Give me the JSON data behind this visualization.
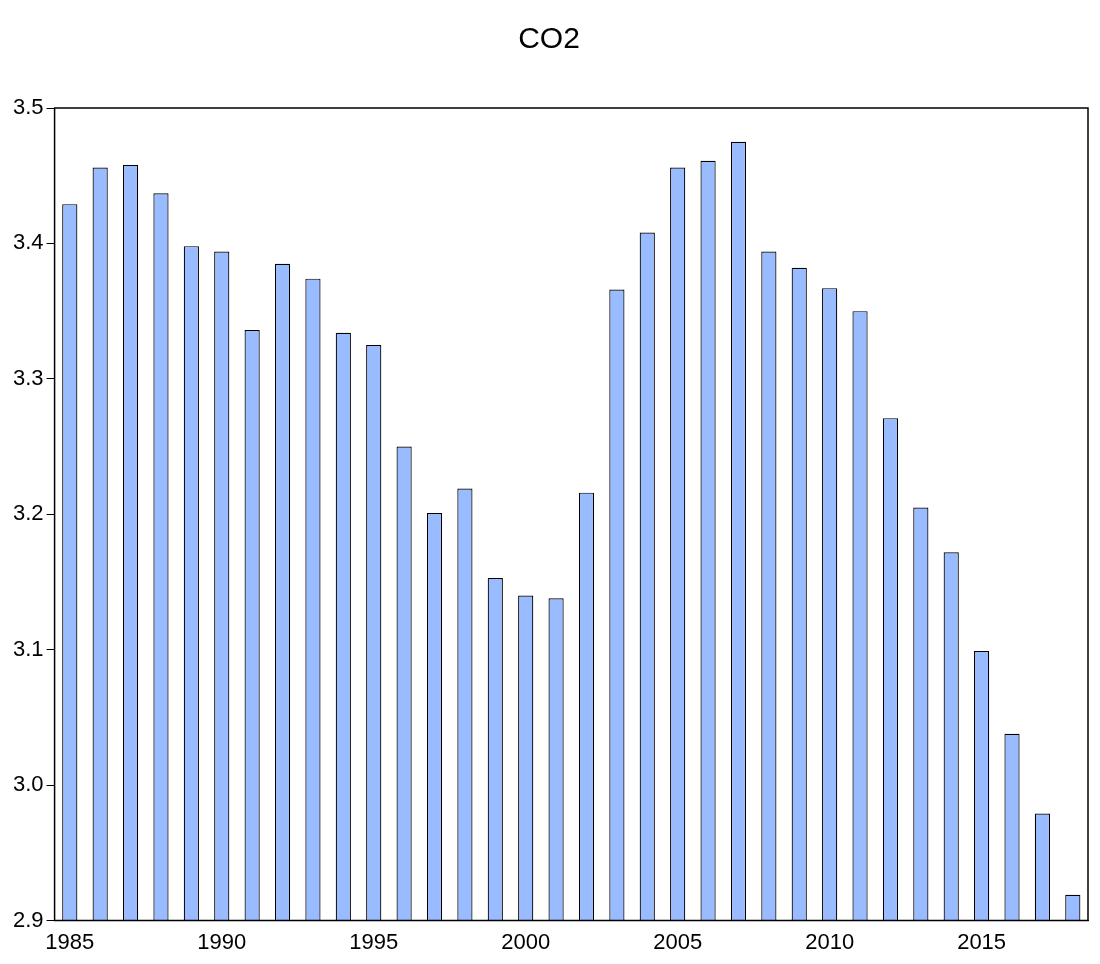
{
  "chart_data": {
    "type": "bar",
    "title": "CO2",
    "categories": [
      "1985",
      null,
      null,
      null,
      null,
      "1990",
      null,
      null,
      null,
      null,
      "1995",
      null,
      null,
      null,
      null,
      "2000",
      null,
      null,
      null,
      null,
      "2005",
      null,
      null,
      null,
      null,
      "2010",
      null,
      null,
      null,
      null,
      "2015",
      null,
      null,
      null
    ],
    "values": [
      3.429,
      3.456,
      3.458,
      3.437,
      3.398,
      3.394,
      3.336,
      3.385,
      3.374,
      3.334,
      3.325,
      3.25,
      3.201,
      3.219,
      3.153,
      3.14,
      3.138,
      3.216,
      3.366,
      3.408,
      3.456,
      3.461,
      3.475,
      3.394,
      3.382,
      3.367,
      3.35,
      3.271,
      3.205,
      3.172,
      3.099,
      3.038,
      2.979,
      2.919
    ],
    "color": "#99bbff",
    "ylim": [
      2.9,
      3.5
    ],
    "yticks": [
      2.9,
      {
        "value": 3.0,
        "label": "3.0"
      },
      3.1,
      3.2,
      3.3,
      3.4,
      3.5
    ],
    "grid": false,
    "legend": false
  }
}
